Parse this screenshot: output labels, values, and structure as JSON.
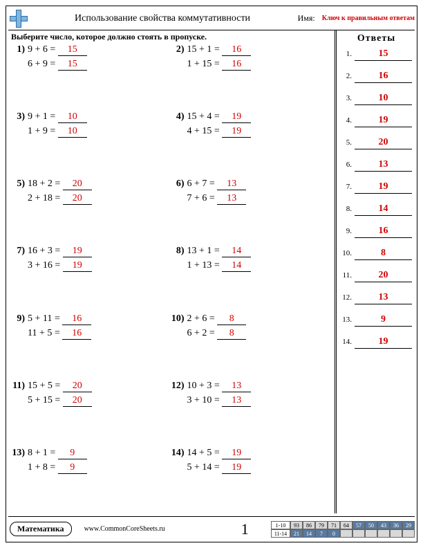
{
  "header": {
    "title": "Использование свойства коммутативности",
    "name_label": "Имя:",
    "answer_key_label": "Ключ к правильным ответам"
  },
  "instruction": "Выберите число, которое должно стоять в пропуске.",
  "problems": [
    {
      "n": "1)",
      "a": "9 + 6 = ",
      "b": "6 + 9 = ",
      "ans": "15"
    },
    {
      "n": "2)",
      "a": "15 + 1 = ",
      "b": "1 + 15 = ",
      "ans": "16"
    },
    {
      "n": "3)",
      "a": "9 + 1 = ",
      "b": "1 + 9 = ",
      "ans": "10"
    },
    {
      "n": "4)",
      "a": "15 + 4 = ",
      "b": "4 + 15 = ",
      "ans": "19"
    },
    {
      "n": "5)",
      "a": "18 + 2 = ",
      "b": "2 + 18 = ",
      "ans": "20"
    },
    {
      "n": "6)",
      "a": "6 + 7 = ",
      "b": "7 + 6 = ",
      "ans": "13"
    },
    {
      "n": "7)",
      "a": "16 + 3 = ",
      "b": "3 + 16 = ",
      "ans": "19"
    },
    {
      "n": "8)",
      "a": "13 + 1 = ",
      "b": "1 + 13 = ",
      "ans": "14"
    },
    {
      "n": "9)",
      "a": "5 + 11 = ",
      "b": "11 + 5 = ",
      "ans": "16"
    },
    {
      "n": "10)",
      "a": "2 + 6 = ",
      "b": "6 + 2 = ",
      "ans": "8"
    },
    {
      "n": "11)",
      "a": "15 + 5 = ",
      "b": "5 + 15 = ",
      "ans": "20"
    },
    {
      "n": "12)",
      "a": "10 + 3 = ",
      "b": "3 + 10 = ",
      "ans": "13"
    },
    {
      "n": "13)",
      "a": "8 + 1 = ",
      "b": "1 + 8 = ",
      "ans": "9"
    },
    {
      "n": "14)",
      "a": "14 + 5 = ",
      "b": "5 + 14 = ",
      "ans": "19"
    }
  ],
  "answers_panel": {
    "title": "Ответы",
    "items": [
      "15",
      "16",
      "10",
      "19",
      "20",
      "13",
      "19",
      "14",
      "16",
      "8",
      "20",
      "13",
      "9",
      "19"
    ]
  },
  "footer": {
    "subject": "Математика",
    "site": "www.CommonCoreSheets.ru",
    "page": "1",
    "score_rows": {
      "label1": "1-10",
      "row1": [
        "93",
        "86",
        "79",
        "71",
        "64",
        "57",
        "50",
        "43",
        "36",
        "29"
      ],
      "label2": "11-14",
      "row2": [
        "21",
        "14",
        "7",
        "0",
        "",
        "",
        "",
        "",
        "",
        ""
      ]
    }
  },
  "colors": {
    "answer_red": "#d00000",
    "logo_blue": "#7ab8e6"
  }
}
